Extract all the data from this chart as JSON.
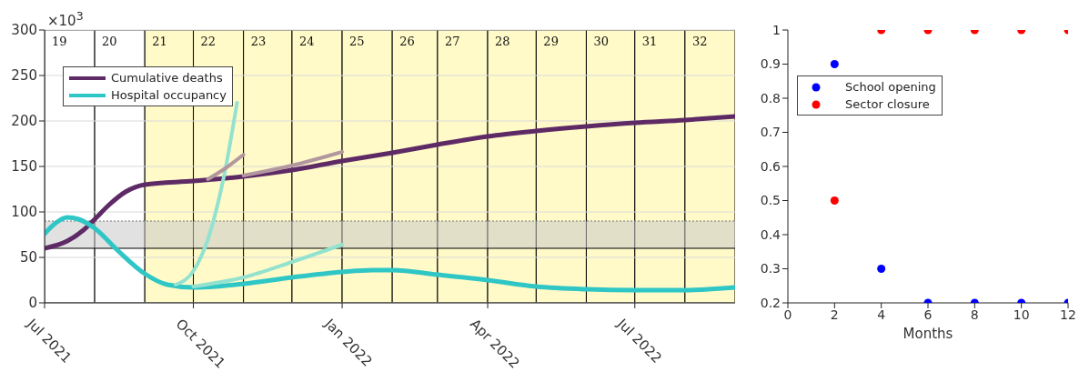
{
  "chart_data": [
    {
      "type": "line",
      "xlim": [
        "2021-07-01",
        "2022-09-01"
      ],
      "xticks": [
        {
          "value": "2021-07-01",
          "label": "Jul 2021"
        },
        {
          "value": "2021-10-01",
          "label": "Oct 2021"
        },
        {
          "value": "2022-01-01",
          "label": "Jan 2022"
        },
        {
          "value": "2022-04-01",
          "label": "Apr 2022"
        },
        {
          "value": "2022-07-01",
          "label": "Jul 2022"
        }
      ],
      "ylim": [
        0,
        300
      ],
      "yticks": [
        0,
        50,
        100,
        150,
        200,
        250,
        300
      ],
      "grid": "y",
      "legend": "top left",
      "marker": "none",
      "annotations": [
        "×10$^{3}$"
      ],
      "series": [
        {
          "name": "Cumulative deaths",
          "color": "#5e2a66",
          "x": [
            "2021-07-01",
            "2021-07-15",
            "2021-07-25",
            "2021-08-01",
            "2021-08-10",
            "2021-08-20",
            "2021-09-01",
            "2021-10-01",
            "2021-11-01",
            "2021-12-01",
            "2022-01-01",
            "2022-02-01",
            "2022-03-01",
            "2022-04-01",
            "2022-05-01",
            "2022-06-01",
            "2022-07-01",
            "2022-08-01",
            "2022-09-01"
          ],
          "values": [
            60,
            68,
            80,
            92,
            108,
            122,
            130,
            134,
            139,
            146,
            156,
            165,
            174,
            183,
            189,
            194,
            198,
            201,
            205
          ]
        },
        {
          "name": "Hospital occupancy",
          "color": "#2fc6c6",
          "x": [
            "2021-07-01",
            "2021-07-08",
            "2021-07-15",
            "2021-07-22",
            "2021-08-01",
            "2021-08-15",
            "2021-09-01",
            "2021-09-15",
            "2021-10-01",
            "2021-10-15",
            "2021-11-01",
            "2021-12-01",
            "2022-01-01",
            "2022-01-20",
            "2022-02-01",
            "2022-03-01",
            "2022-04-01",
            "2022-05-01",
            "2022-06-01",
            "2022-07-01",
            "2022-08-01",
            "2022-09-01"
          ],
          "values": [
            76,
            88,
            94,
            92,
            82,
            58,
            32,
            20,
            17,
            18,
            21,
            28,
            34,
            36,
            36,
            31,
            25,
            18,
            15,
            14,
            14,
            17
          ]
        },
        {
          "color": "#93e2cf",
          "x": [
            "2021-09-20",
            "2021-10-01",
            "2021-10-10",
            "2021-10-20",
            "2021-10-28"
          ],
          "values": [
            20,
            35,
            70,
            140,
            220
          ]
        },
        {
          "color": "#93e2cf",
          "x": [
            "2021-10-01",
            "2021-11-01",
            "2021-12-01",
            "2022-01-01"
          ],
          "values": [
            18,
            28,
            45,
            64
          ]
        },
        {
          "color": "#b3979f",
          "x": [
            "2021-10-10",
            "2021-10-20",
            "2021-11-01"
          ],
          "values": [
            136,
            147,
            163
          ]
        },
        {
          "color": "#b3979f",
          "x": [
            "2021-11-01",
            "2021-12-01",
            "2022-01-01"
          ],
          "values": [
            140,
            151,
            166
          ]
        }
      ],
      "ref_lines": [
        {
          "axis": "y",
          "value": 60,
          "color": "#000000",
          "line_style": "solid"
        },
        {
          "axis": "y",
          "value": 90,
          "color": "#777777",
          "line_style": "dotted"
        }
      ],
      "bands": [
        {
          "axis": "y",
          "from": 60,
          "to": 90,
          "color": "#c8c8c8"
        },
        {
          "axis": "x",
          "from": "2021-07-01",
          "to": "2021-08-01",
          "label": "19",
          "color": "#ffffff"
        },
        {
          "axis": "x",
          "from": "2021-08-01",
          "to": "2021-09-01",
          "label": "20",
          "color": "#ffffff"
        },
        {
          "axis": "x",
          "from": "2021-09-01",
          "to": "2021-10-01",
          "label": "21",
          "color": "#fffac8"
        },
        {
          "axis": "x",
          "from": "2021-10-01",
          "to": "2021-11-01",
          "label": "22",
          "color": "#fffac8"
        },
        {
          "axis": "x",
          "from": "2021-11-01",
          "to": "2021-12-01",
          "label": "23",
          "color": "#fffac8"
        },
        {
          "axis": "x",
          "from": "2021-12-01",
          "to": "2022-01-01",
          "label": "24",
          "color": "#fffac8"
        },
        {
          "axis": "x",
          "from": "2022-01-01",
          "to": "2022-02-01",
          "label": "25",
          "color": "#fffac8"
        },
        {
          "axis": "x",
          "from": "2022-02-01",
          "to": "2022-03-01",
          "label": "26",
          "color": "#fffac8"
        },
        {
          "axis": "x",
          "from": "2022-03-01",
          "to": "2022-04-01",
          "label": "27",
          "color": "#fffac8"
        },
        {
          "axis": "x",
          "from": "2022-04-01",
          "to": "2022-05-01",
          "label": "28",
          "color": "#fffac8"
        },
        {
          "axis": "x",
          "from": "2022-05-01",
          "to": "2022-06-01",
          "label": "29",
          "color": "#fffac8"
        },
        {
          "axis": "x",
          "from": "2022-06-01",
          "to": "2022-07-01",
          "label": "30",
          "color": "#fffac8"
        },
        {
          "axis": "x",
          "from": "2022-07-01",
          "to": "2022-08-01",
          "label": "31",
          "color": "#fffac8"
        },
        {
          "axis": "x",
          "from": "2022-08-01",
          "to": "2022-09-01",
          "label": "32",
          "color": "#fffac8"
        }
      ]
    },
    {
      "type": "scatter",
      "xlabel": "Months",
      "xlim": [
        0,
        12
      ],
      "xticks": [
        0,
        2,
        4,
        6,
        8,
        10,
        12
      ],
      "ylim": [
        0.2,
        1
      ],
      "yticks": [
        0.2,
        0.3,
        0.4,
        0.5,
        0.6,
        0.7,
        0.8,
        0.9,
        1
      ],
      "grid": false,
      "legend": "top left",
      "marker": "circle",
      "series": [
        {
          "name": "School opening",
          "color": "#0000ff",
          "x": [
            2,
            4,
            6,
            8,
            10,
            12
          ],
          "values": [
            0.9,
            0.3,
            0.2,
            0.2,
            0.2,
            0.2
          ]
        },
        {
          "name": "Sector closure",
          "color": "#ff0000",
          "x": [
            2,
            4,
            6,
            8,
            10,
            12
          ],
          "values": [
            0.5,
            1,
            1,
            1,
            1,
            1
          ]
        }
      ]
    }
  ]
}
